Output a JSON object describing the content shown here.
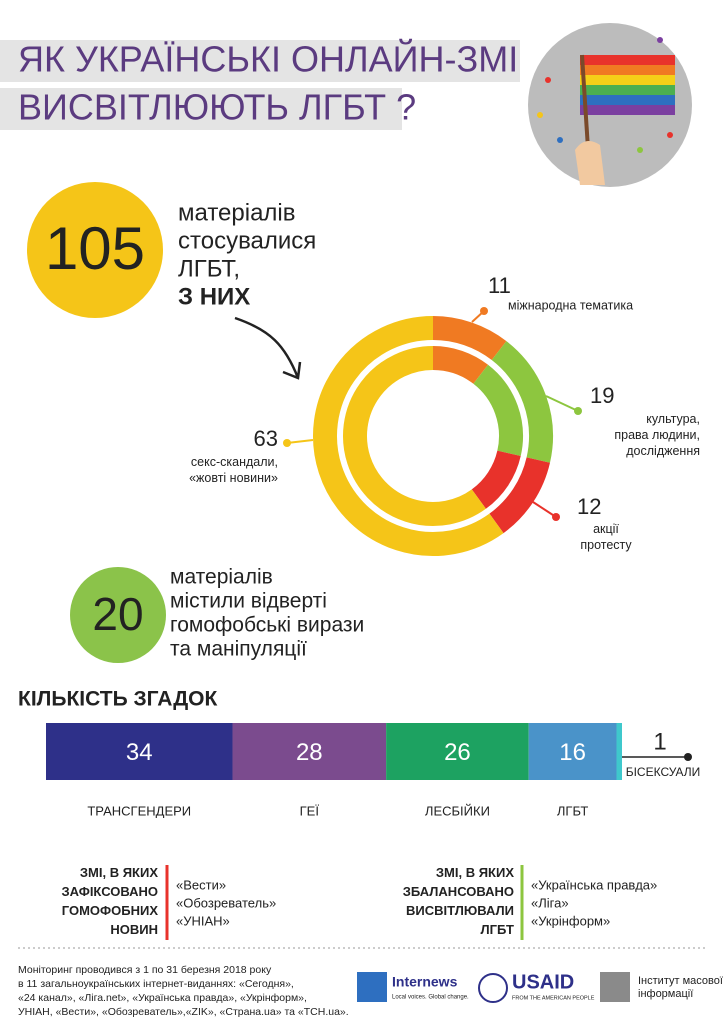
{
  "header": {
    "title_lines": [
      "ЯК УКРАЇНСЬКІ ОНЛАЙН-ЗМІ",
      "ВИСВІТЛЮЮТЬ ЛГБТ ?"
    ]
  },
  "stats": [
    {
      "number": 105,
      "lines": [
        "матеріалів",
        "стосувалися",
        "ЛГБТ,"
      ],
      "emphasis": "З НИХ",
      "color": "#f5c518"
    },
    {
      "number": 20,
      "lines": [
        "матеріалів",
        "містили відверті",
        "гомофобські вирази",
        "та маніпуляції"
      ],
      "color": "#8bc34a"
    }
  ],
  "chart_data": [
    {
      "type": "donut",
      "categories": [
        "міжнародна тематика",
        "культура,\nправа людини,\nдослідження",
        "акції\nпротесту",
        "секс-скандали,\n«жовті новини»"
      ],
      "values": [
        11,
        19,
        12,
        63
      ],
      "colors": [
        "#f07a22",
        "#8dc63f",
        "#e8322b",
        "#f5c518"
      ]
    },
    {
      "type": "stacked-bar",
      "title": "КІЛЬКІСТЬ ЗГАДОК",
      "categories": [
        "ТРАНСГЕНДЕРИ",
        "ГЕЇ",
        "ЛЕСБІЙКИ",
        "ЛГБТ",
        "БІСЕКСУАЛИ"
      ],
      "values": [
        34,
        28,
        26,
        16,
        1
      ],
      "colors": [
        "#2e3089",
        "#7b4b8e",
        "#1da261",
        "#4a93c9",
        "#3fc8cc"
      ]
    }
  ],
  "lists": [
    {
      "heading": "ЗМІ, В ЯКИХ\nЗАФІКСОВАНО\nГОМОФОБНИХ\nНОВИН",
      "items": [
        "«Вести»",
        "«Обозреватель»",
        "«УНІАН»"
      ],
      "color": "#e8322b"
    },
    {
      "heading": "ЗМІ, В ЯКИХ\nЗБАЛАНСОВАНО\nВИСВІТЛЮВАЛИ\nЛГБТ",
      "items": [
        "«Українська правда»",
        "«Ліга»",
        "«Укрінформ»"
      ],
      "color": "#8dc63f"
    }
  ],
  "footer": {
    "lines": [
      "Моніторинг проводився з 1 по 31 березня 2018 року",
      "в 11 загальноукраїнських інтернет-виданнях: «Сегодня»,",
      "«24 канал», «Ліга.net», «Українська правда», «Укрінформ»,",
      "УНІАН, «Вести», «Обозреватель»,«ZIK», «Страна.ua» та «ТСН.ua»."
    ],
    "logos": [
      "Internews",
      "Local voices. Global change.",
      "USAID",
      "FROM THE AMERICAN PEOPLE",
      "Інститут масової\nінформації"
    ]
  }
}
